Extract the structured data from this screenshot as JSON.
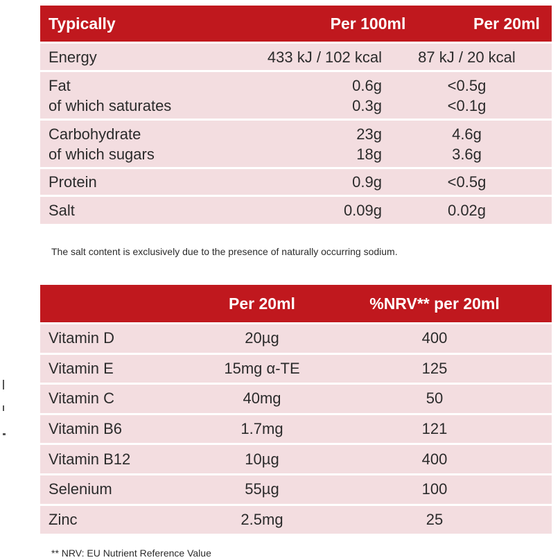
{
  "nutrition_table": {
    "headers": [
      "Typically",
      "Per 100ml",
      "Per 20ml"
    ],
    "rows": [
      {
        "label": [
          "Energy"
        ],
        "per100": [
          "433 kJ / 102 kcal"
        ],
        "per20": [
          "87 kJ / 20 kcal"
        ]
      },
      {
        "label": [
          "Fat",
          "of which saturates"
        ],
        "per100": [
          "0.6g",
          "0.3g"
        ],
        "per20": [
          "<0.5g",
          "<0.1g"
        ]
      },
      {
        "label": [
          "Carbohydrate",
          "of which sugars"
        ],
        "per100": [
          "23g",
          "18g"
        ],
        "per20": [
          "4.6g",
          "3.6g"
        ]
      },
      {
        "label": [
          "Protein"
        ],
        "per100": [
          "0.9g"
        ],
        "per20": [
          "<0.5g"
        ]
      },
      {
        "label": [
          "Salt"
        ],
        "per100": [
          "0.09g"
        ],
        "per20": [
          "0.02g"
        ]
      }
    ]
  },
  "salt_note": "The salt content is exclusively due to the presence of naturally occurring sodium.",
  "vitamin_table": {
    "headers": [
      "",
      "Per 20ml",
      "%NRV** per 20ml"
    ],
    "rows": [
      {
        "label": "Vitamin D",
        "per20": "20µg",
        "nrv": "400"
      },
      {
        "label": "Vitamin E",
        "per20": "15mg α-TE",
        "nrv": "125"
      },
      {
        "label": "Vitamin C",
        "per20": "40mg",
        "nrv": "50"
      },
      {
        "label": "Vitamin B6",
        "per20": "1.7mg",
        "nrv": "121"
      },
      {
        "label": "Vitamin B12",
        "per20": "10µg",
        "nrv": "400"
      },
      {
        "label": "Selenium",
        "per20": "55µg",
        "nrv": "100"
      },
      {
        "label": "Zinc",
        "per20": "2.5mg",
        "nrv": "25"
      }
    ]
  },
  "nrv_note": "** NRV: EU Nutrient Reference Value"
}
